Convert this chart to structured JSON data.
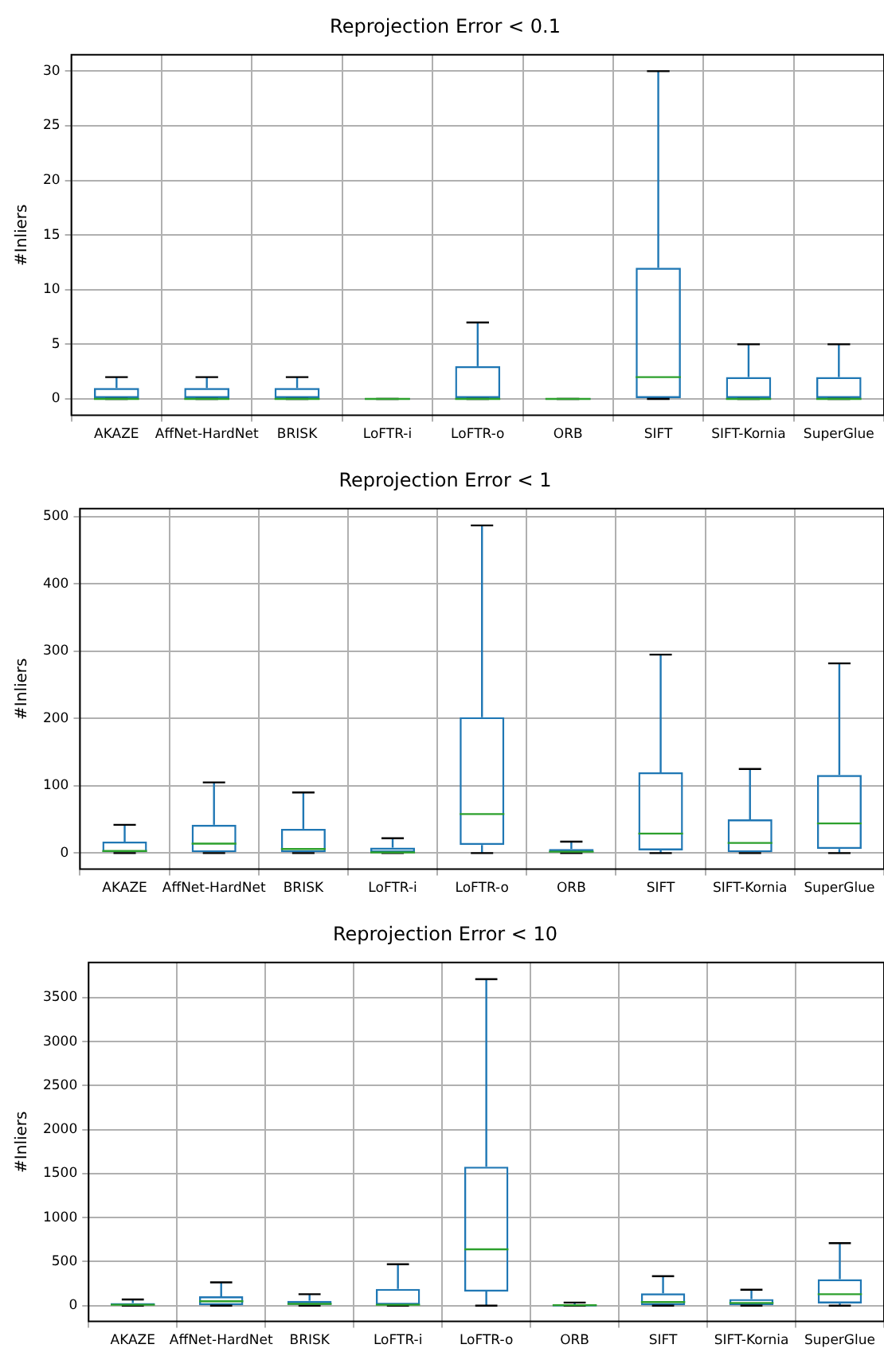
{
  "chart_data": [
    {
      "type": "box",
      "title": "Reprojection Error < 0.1",
      "ylabel": "#Inliers",
      "categories": [
        "AKAZE",
        "AffNet-HardNet",
        "BRISK",
        "LoFTR-i",
        "LoFTR-o",
        "ORB",
        "SIFT",
        "SIFT-Kornia",
        "SuperGlue"
      ],
      "series": [
        {
          "color": "#1f77b4",
          "boxes": [
            {
              "low": 0,
              "q1": 0,
              "median": 0,
              "q3": 1,
              "high": 2
            },
            {
              "low": 0,
              "q1": 0,
              "median": 0,
              "q3": 1,
              "high": 2
            },
            {
              "low": 0,
              "q1": 0,
              "median": 0,
              "q3": 1,
              "high": 2
            },
            {
              "low": 0,
              "q1": 0,
              "median": 0,
              "q3": 0,
              "high": 0
            },
            {
              "low": 0,
              "q1": 0,
              "median": 0,
              "q3": 3,
              "high": 7
            },
            {
              "low": 0,
              "q1": 0,
              "median": 0,
              "q3": 0,
              "high": 0
            },
            {
              "low": 0,
              "q1": 0,
              "median": 2,
              "q3": 12,
              "high": 30
            },
            {
              "low": 0,
              "q1": 0,
              "median": 0,
              "q3": 2,
              "high": 5
            },
            {
              "low": 0,
              "q1": 0,
              "median": 0,
              "q3": 2,
              "high": 5
            }
          ]
        }
      ],
      "ylim": [
        -1.5,
        31.5
      ],
      "yticks": [
        0,
        5,
        10,
        15,
        20,
        25,
        30
      ],
      "grid": true
    },
    {
      "type": "box",
      "title": "Reprojection Error < 1",
      "ylabel": "#Inliers",
      "categories": [
        "AKAZE",
        "AffNet-HardNet",
        "BRISK",
        "LoFTR-i",
        "LoFTR-o",
        "ORB",
        "SIFT",
        "SIFT-Kornia",
        "SuperGlue"
      ],
      "series": [
        {
          "color": "#1f77b4",
          "boxes": [
            {
              "low": 0,
              "q1": 0,
              "median": 3,
              "q3": 17,
              "high": 42
            },
            {
              "low": 0,
              "q1": 0,
              "median": 14,
              "q3": 42,
              "high": 105
            },
            {
              "low": 0,
              "q1": 0,
              "median": 6,
              "q3": 36,
              "high": 90
            },
            {
              "low": 0,
              "q1": 0,
              "median": 1,
              "q3": 8,
              "high": 22
            },
            {
              "low": 0,
              "q1": 12,
              "median": 58,
              "q3": 202,
              "high": 487
            },
            {
              "low": 0,
              "q1": 0,
              "median": 2,
              "q3": 6,
              "high": 17
            },
            {
              "low": 0,
              "q1": 4,
              "median": 29,
              "q3": 120,
              "high": 295
            },
            {
              "low": 0,
              "q1": 0,
              "median": 15,
              "q3": 50,
              "high": 125
            },
            {
              "low": 0,
              "q1": 6,
              "median": 44,
              "q3": 116,
              "high": 282
            }
          ]
        }
      ],
      "ylim": [
        -24,
        512
      ],
      "yticks": [
        0,
        100,
        200,
        300,
        400,
        500
      ],
      "grid": true
    },
    {
      "type": "box",
      "title": "Reprojection Error < 10",
      "ylabel": "#Inliers",
      "categories": [
        "AKAZE",
        "AffNet-HardNet",
        "BRISK",
        "LoFTR-i",
        "LoFTR-o",
        "ORB",
        "SIFT",
        "SIFT-Kornia",
        "SuperGlue"
      ],
      "series": [
        {
          "color": "#1f77b4",
          "boxes": [
            {
              "low": 0,
              "q1": 0,
              "median": 10,
              "q3": 30,
              "high": 70
            },
            {
              "low": 0,
              "q1": 5,
              "median": 50,
              "q3": 105,
              "high": 265
            },
            {
              "low": 0,
              "q1": 0,
              "median": 20,
              "q3": 55,
              "high": 130
            },
            {
              "low": 0,
              "q1": 0,
              "median": 10,
              "q3": 190,
              "high": 470
            },
            {
              "low": 0,
              "q1": 160,
              "median": 640,
              "q3": 1580,
              "high": 3710
            },
            {
              "low": 0,
              "q1": 0,
              "median": 5,
              "q3": 15,
              "high": 35
            },
            {
              "low": 0,
              "q1": 5,
              "median": 40,
              "q3": 140,
              "high": 335
            },
            {
              "low": 0,
              "q1": 5,
              "median": 30,
              "q3": 75,
              "high": 180
            },
            {
              "low": 0,
              "q1": 25,
              "median": 130,
              "q3": 300,
              "high": 710
            }
          ]
        }
      ],
      "ylim": [
        -180,
        3900
      ],
      "yticks": [
        0,
        500,
        1000,
        1500,
        2000,
        2500,
        3000,
        3500
      ],
      "grid": true
    }
  ]
}
